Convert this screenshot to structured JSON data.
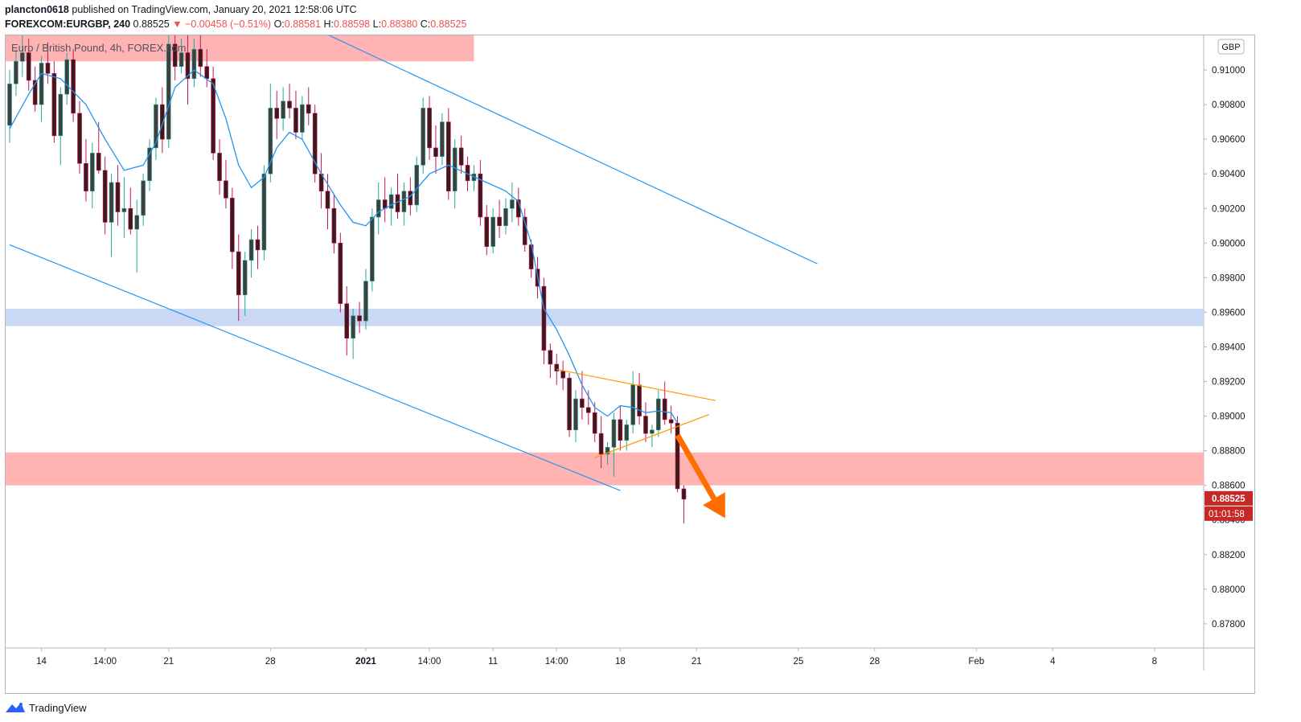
{
  "header": {
    "author": "plancton0618",
    "published_text": " published on TradingView.com, January 20, 2021 12:58:06 UTC",
    "symbol_interval": "FOREXCOM:EURGBP, 240",
    "last": "0.88525",
    "change": "▼ −0.00458 (−0.51%)",
    "o_label": "O:",
    "o": "0.88581",
    "h_label": "H:",
    "h": "0.88598",
    "l_label": "L:",
    "l": "0.88380",
    "c_label": "C:",
    "c": "0.88525"
  },
  "legend_name": "Euro / British Pound, 4h, FOREX.com",
  "footer": {
    "brand": "TradingView"
  },
  "colors": {
    "up": "#26a69a",
    "down": "#c2185b",
    "down_body": "#3d1a1a",
    "up_body": "#3f3f3f",
    "ma": "#2196f3",
    "channel": "#2196f3",
    "triangle": "#ff9800",
    "arrow": "#ff6d00",
    "zone_red": "#ffb3b3",
    "zone_blue": "#c9d9f5",
    "price_badge": "#c62828"
  },
  "chart_data": {
    "type": "candlestick",
    "currency_label": "GBP",
    "ylim": [
      0.8766,
      0.912
    ],
    "y_ticks": [
      "0.91000",
      "0.90800",
      "0.90600",
      "0.90400",
      "0.90200",
      "0.90000",
      "0.89800",
      "0.89600",
      "0.89400",
      "0.89200",
      "0.89000",
      "0.88800",
      "0.88600",
      "0.88400",
      "0.88200",
      "0.88000",
      "0.87800"
    ],
    "x_ticks": [
      {
        "label": "14",
        "i": 5
      },
      {
        "label": "14:00",
        "i": 15
      },
      {
        "label": "21",
        "i": 25
      },
      {
        "label": "28",
        "i": 41
      },
      {
        "label": "2021",
        "i": 56
      },
      {
        "label": "14:00",
        "i": 66
      },
      {
        "label": "11",
        "i": 76
      },
      {
        "label": "14:00",
        "i": 86
      },
      {
        "label": "18",
        "i": 96
      },
      {
        "label": "21",
        "i": 108
      },
      {
        "label": "25",
        "i": 124
      },
      {
        "label": "28",
        "i": 136
      },
      {
        "label": "Feb",
        "i": 152
      },
      {
        "label": "4",
        "i": 164
      },
      {
        "label": "8",
        "i": 180
      }
    ],
    "last_price": "0.88525",
    "countdown": "01:01:58",
    "zones": [
      {
        "name": "upper-resistance-zone",
        "from": 0.9105,
        "to": 0.913,
        "i_end": 73
      },
      {
        "name": "blue-support-zone",
        "from": 0.8952,
        "to": 0.8962,
        "i_end": 999
      },
      {
        "name": "lower-support-zone",
        "from": 0.886,
        "to": 0.8879,
        "i_end": 999
      }
    ],
    "channel_upper": [
      {
        "i": 45,
        "p": 0.9129
      },
      {
        "i": 127,
        "p": 0.8988
      }
    ],
    "channel_lower": [
      {
        "i": 0,
        "p": 0.8999
      },
      {
        "i": 96,
        "p": 0.8857
      }
    ],
    "triangle_upper": [
      {
        "i": 86,
        "p": 0.8927
      },
      {
        "i": 111,
        "p": 0.8909
      }
    ],
    "triangle_lower": [
      {
        "i": 92,
        "p": 0.8876
      },
      {
        "i": 110,
        "p": 0.8901
      }
    ],
    "arrow": {
      "from": {
        "i": 105,
        "p": 0.8889
      },
      "to": {
        "i": 112.5,
        "p": 0.8841
      }
    },
    "ohlc": [
      [
        0.9068,
        0.91,
        0.9058,
        0.9092
      ],
      [
        0.9092,
        0.9112,
        0.9085,
        0.9105
      ],
      [
        0.9105,
        0.912,
        0.9096,
        0.911
      ],
      [
        0.911,
        0.9118,
        0.9088,
        0.9094
      ],
      [
        0.9094,
        0.9102,
        0.9076,
        0.908
      ],
      [
        0.908,
        0.9108,
        0.907,
        0.9104
      ],
      [
        0.9104,
        0.9116,
        0.9092,
        0.9098
      ],
      [
        0.9098,
        0.9105,
        0.9058,
        0.9062
      ],
      [
        0.9062,
        0.909,
        0.9045,
        0.9086
      ],
      [
        0.9086,
        0.911,
        0.908,
        0.9106
      ],
      [
        0.9106,
        0.9112,
        0.907,
        0.9075
      ],
      [
        0.9075,
        0.9082,
        0.904,
        0.9046
      ],
      [
        0.9046,
        0.906,
        0.9024,
        0.903
      ],
      [
        0.903,
        0.9058,
        0.902,
        0.9052
      ],
      [
        0.9052,
        0.907,
        0.904,
        0.9042
      ],
      [
        0.9042,
        0.905,
        0.9005,
        0.9012
      ],
      [
        0.9012,
        0.904,
        0.8992,
        0.9035
      ],
      [
        0.9035,
        0.9045,
        0.901,
        0.9018
      ],
      [
        0.9018,
        0.9038,
        0.9003,
        0.902
      ],
      [
        0.902,
        0.9032,
        0.9005,
        0.9008
      ],
      [
        0.9008,
        0.9025,
        0.8983,
        0.9016
      ],
      [
        0.9016,
        0.904,
        0.901,
        0.9036
      ],
      [
        0.9036,
        0.906,
        0.903,
        0.9055
      ],
      [
        0.9055,
        0.9084,
        0.9048,
        0.908
      ],
      [
        0.908,
        0.909,
        0.9052,
        0.906
      ],
      [
        0.906,
        0.912,
        0.9055,
        0.9115
      ],
      [
        0.9115,
        0.9125,
        0.9094,
        0.9102
      ],
      [
        0.9102,
        0.9118,
        0.9098,
        0.911
      ],
      [
        0.911,
        0.9125,
        0.908,
        0.9095
      ],
      [
        0.9095,
        0.9118,
        0.909,
        0.9112
      ],
      [
        0.9112,
        0.912,
        0.9096,
        0.9102
      ],
      [
        0.9102,
        0.9112,
        0.909,
        0.9095
      ],
      [
        0.9095,
        0.9102,
        0.9048,
        0.9052
      ],
      [
        0.9052,
        0.906,
        0.9028,
        0.9036
      ],
      [
        0.9036,
        0.9048,
        0.902,
        0.9026
      ],
      [
        0.9026,
        0.9032,
        0.8985,
        0.8995
      ],
      [
        0.8995,
        0.9005,
        0.8955,
        0.897
      ],
      [
        0.897,
        0.8995,
        0.8958,
        0.899
      ],
      [
        0.899,
        0.9008,
        0.898,
        0.9002
      ],
      [
        0.9002,
        0.901,
        0.8985,
        0.8996
      ],
      [
        0.8996,
        0.9045,
        0.899,
        0.904
      ],
      [
        0.904,
        0.9092,
        0.9035,
        0.9078
      ],
      [
        0.9078,
        0.9088,
        0.906,
        0.9072
      ],
      [
        0.9072,
        0.909,
        0.9065,
        0.9082
      ],
      [
        0.9082,
        0.9092,
        0.9072,
        0.9078
      ],
      [
        0.9078,
        0.9088,
        0.906,
        0.9064
      ],
      [
        0.9064,
        0.9085,
        0.906,
        0.908
      ],
      [
        0.908,
        0.909,
        0.9068,
        0.9075
      ],
      [
        0.9075,
        0.908,
        0.9035,
        0.904
      ],
      [
        0.904,
        0.9052,
        0.902,
        0.903
      ],
      [
        0.903,
        0.904,
        0.9008,
        0.902
      ],
      [
        0.902,
        0.9028,
        0.8994,
        0.9
      ],
      [
        0.9,
        0.9006,
        0.896,
        0.8965
      ],
      [
        0.8965,
        0.8975,
        0.8935,
        0.8945
      ],
      [
        0.8945,
        0.8962,
        0.8933,
        0.8958
      ],
      [
        0.8958,
        0.8966,
        0.8948,
        0.8955
      ],
      [
        0.8955,
        0.8985,
        0.895,
        0.8978
      ],
      [
        0.8978,
        0.902,
        0.8972,
        0.9015
      ],
      [
        0.9015,
        0.9035,
        0.9005,
        0.9025
      ],
      [
        0.9025,
        0.9038,
        0.9012,
        0.902
      ],
      [
        0.902,
        0.9032,
        0.901,
        0.9028
      ],
      [
        0.9028,
        0.904,
        0.9014,
        0.9018
      ],
      [
        0.9018,
        0.9035,
        0.901,
        0.903
      ],
      [
        0.903,
        0.9038,
        0.9016,
        0.9022
      ],
      [
        0.9022,
        0.905,
        0.9018,
        0.9045
      ],
      [
        0.9045,
        0.9084,
        0.904,
        0.9078
      ],
      [
        0.9078,
        0.9085,
        0.9048,
        0.9055
      ],
      [
        0.9055,
        0.9068,
        0.904,
        0.905
      ],
      [
        0.905,
        0.9075,
        0.9045,
        0.907
      ],
      [
        0.907,
        0.9078,
        0.9025,
        0.903
      ],
      [
        0.903,
        0.906,
        0.902,
        0.9055
      ],
      [
        0.9055,
        0.9062,
        0.904,
        0.9045
      ],
      [
        0.9045,
        0.905,
        0.903,
        0.9036
      ],
      [
        0.9036,
        0.9045,
        0.903,
        0.904
      ],
      [
        0.904,
        0.9048,
        0.901,
        0.9015
      ],
      [
        0.9015,
        0.9022,
        0.8993,
        0.8998
      ],
      [
        0.8998,
        0.902,
        0.8994,
        0.9015
      ],
      [
        0.9015,
        0.9025,
        0.9003,
        0.901
      ],
      [
        0.901,
        0.9026,
        0.9005,
        0.902
      ],
      [
        0.902,
        0.9035,
        0.9012,
        0.9025
      ],
      [
        0.9025,
        0.9032,
        0.901,
        0.9015
      ],
      [
        0.9015,
        0.902,
        0.8995,
        0.8999
      ],
      [
        0.8999,
        0.9002,
        0.898,
        0.8985
      ],
      [
        0.8985,
        0.8992,
        0.8968,
        0.8975
      ],
      [
        0.8975,
        0.898,
        0.893,
        0.8938
      ],
      [
        0.8938,
        0.8942,
        0.8922,
        0.893
      ],
      [
        0.893,
        0.8936,
        0.8918,
        0.8926
      ],
      [
        0.8926,
        0.8932,
        0.8915,
        0.8922
      ],
      [
        0.8922,
        0.8925,
        0.8888,
        0.8892
      ],
      [
        0.8892,
        0.8915,
        0.8885,
        0.891
      ],
      [
        0.891,
        0.8926,
        0.8898,
        0.8905
      ],
      [
        0.8905,
        0.8915,
        0.8895,
        0.8902
      ],
      [
        0.8902,
        0.8908,
        0.8885,
        0.889
      ],
      [
        0.889,
        0.89,
        0.887,
        0.8878
      ],
      [
        0.8878,
        0.8885,
        0.8872,
        0.8882
      ],
      [
        0.8882,
        0.8902,
        0.8865,
        0.8898
      ],
      [
        0.8898,
        0.8906,
        0.888,
        0.8886
      ],
      [
        0.8886,
        0.8898,
        0.888,
        0.8895
      ],
      [
        0.8895,
        0.8926,
        0.889,
        0.8918
      ],
      [
        0.8918,
        0.8925,
        0.8895,
        0.89
      ],
      [
        0.89,
        0.8908,
        0.8885,
        0.889
      ],
      [
        0.889,
        0.8895,
        0.8882,
        0.8892
      ],
      [
        0.8892,
        0.8915,
        0.8888,
        0.891
      ],
      [
        0.891,
        0.892,
        0.8895,
        0.8898
      ],
      [
        0.8898,
        0.8906,
        0.889,
        0.8896
      ],
      [
        0.8896,
        0.89,
        0.8856,
        0.8858
      ],
      [
        0.8858,
        0.886,
        0.8838,
        0.8852
      ]
    ],
    "ma": [
      [
        0,
        0.9066
      ],
      [
        3,
        0.9086
      ],
      [
        5,
        0.9098
      ],
      [
        8,
        0.9095
      ],
      [
        12,
        0.908
      ],
      [
        15,
        0.906
      ],
      [
        18,
        0.9042
      ],
      [
        21,
        0.9045
      ],
      [
        23,
        0.9058
      ],
      [
        26,
        0.909
      ],
      [
        29,
        0.91
      ],
      [
        32,
        0.9092
      ],
      [
        34,
        0.9072
      ],
      [
        36,
        0.9045
      ],
      [
        38,
        0.9032
      ],
      [
        40,
        0.9038
      ],
      [
        42,
        0.9055
      ],
      [
        44,
        0.9064
      ],
      [
        46,
        0.906
      ],
      [
        49,
        0.904
      ],
      [
        52,
        0.9022
      ],
      [
        54,
        0.9012
      ],
      [
        56,
        0.901
      ],
      [
        58,
        0.9018
      ],
      [
        60,
        0.9022
      ],
      [
        63,
        0.9027
      ],
      [
        66,
        0.904
      ],
      [
        69,
        0.9045
      ],
      [
        72,
        0.904
      ],
      [
        75,
        0.9035
      ],
      [
        78,
        0.903
      ],
      [
        80,
        0.9024
      ],
      [
        82,
        0.9
      ],
      [
        84,
        0.8962
      ],
      [
        86,
        0.895
      ],
      [
        88,
        0.8935
      ],
      [
        90,
        0.8918
      ],
      [
        92,
        0.8905
      ],
      [
        94,
        0.89
      ],
      [
        96,
        0.8906
      ],
      [
        98,
        0.8905
      ],
      [
        100,
        0.8902
      ],
      [
        102,
        0.8903
      ],
      [
        104,
        0.8902
      ],
      [
        105,
        0.8896
      ]
    ]
  }
}
